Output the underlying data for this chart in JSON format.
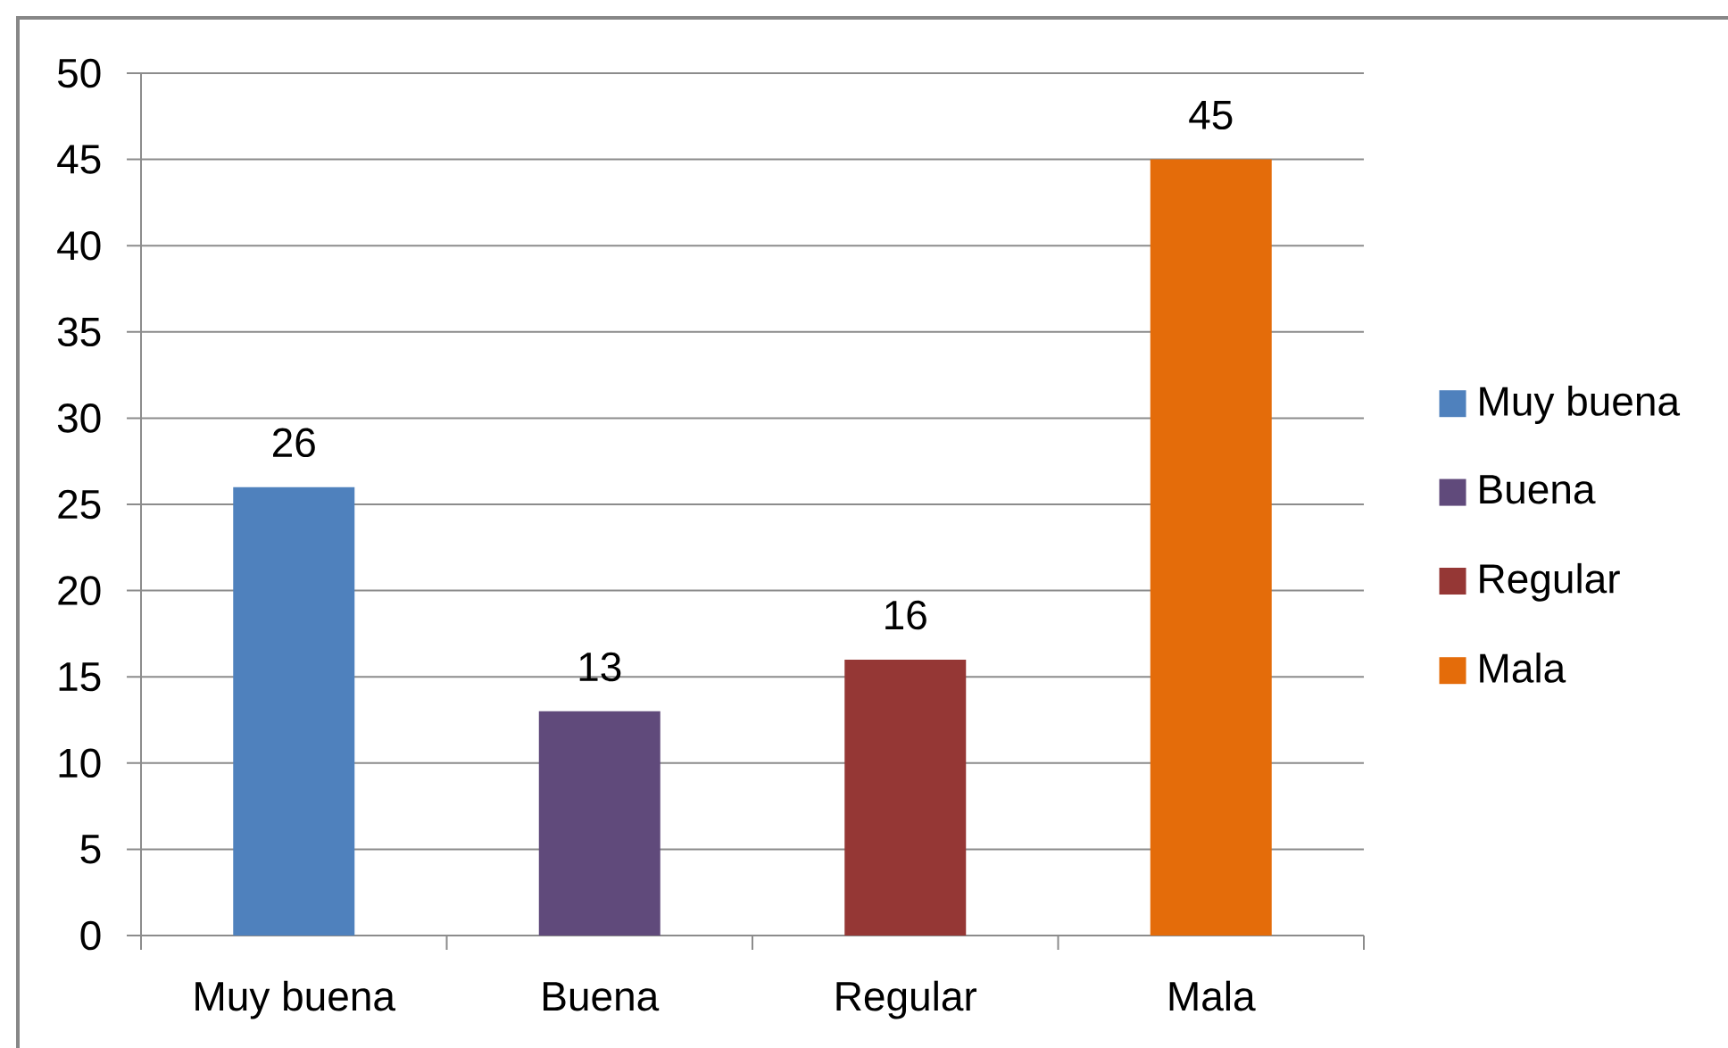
{
  "chart_data": {
    "type": "bar",
    "categories": [
      "Muy buena",
      "Buena",
      "Regular",
      "Mala"
    ],
    "series": [
      {
        "name": "Muy buena",
        "color": "#4f81bd",
        "values": [
          26,
          null,
          null,
          null
        ]
      },
      {
        "name": "Buena",
        "color": "#604a7b",
        "values": [
          null,
          13,
          null,
          null
        ]
      },
      {
        "name": "Regular",
        "color": "#953735",
        "values": [
          null,
          null,
          16,
          null
        ]
      },
      {
        "name": "Mala",
        "color": "#e46c0a",
        "values": [
          null,
          null,
          null,
          45
        ]
      }
    ],
    "ylim": [
      0,
      50
    ],
    "yticks": [
      0,
      5,
      10,
      15,
      20,
      25,
      30,
      35,
      40,
      45,
      50
    ],
    "grid": "y",
    "legend": "right",
    "data_labels": true
  }
}
